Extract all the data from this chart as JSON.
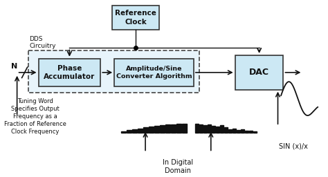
{
  "figsize": [
    4.74,
    2.56
  ],
  "dpi": 100,
  "box_fill": "#cce8f4",
  "box_edge": "#333333",
  "arrow_color": "#111111",
  "text_color": "#111111",
  "ref_clock_label": "Reference\nClock",
  "phase_acc_label": "Phase\nAccumulator",
  "amp_sine_label": "Amplitude/Sine\nConverter Algorithm",
  "dac_label": "DAC",
  "dds_label": "DDS\nCircuitry",
  "tuning_word_label": "Tuning Word\nSpecifies Output\nFrequency as a\nFraction of Reference\nClock Frequency",
  "digital_domain_label": "In Digital\nDomain",
  "sin_label": "SIN (x)/x",
  "n_label": "N",
  "rising_bars": [
    0.02,
    0.04,
    0.055,
    0.07,
    0.085,
    0.1,
    0.115,
    0.125,
    0.135,
    0.14,
    0.145,
    0.15
  ],
  "dac_bars": [
    0.15,
    0.135,
    0.13,
    0.14,
    0.115,
    0.1,
    0.13,
    0.085,
    0.06,
    0.07,
    0.04,
    0.055,
    0.03,
    0.035,
    0.015
  ]
}
